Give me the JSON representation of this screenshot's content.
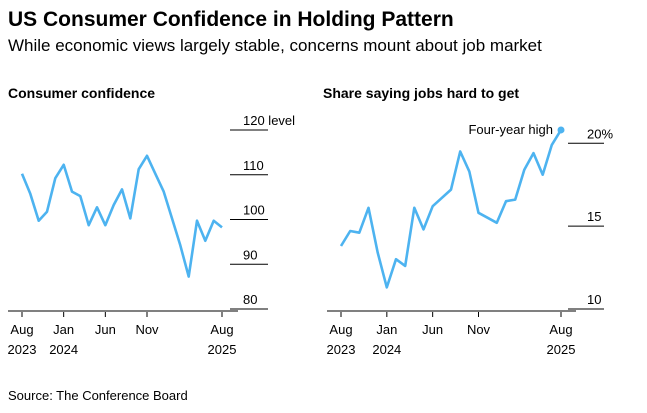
{
  "title": "US Consumer Confidence in Holding Pattern",
  "subtitle": "While economic views largely stable, concerns mount about job market",
  "source": "Source: The Conference Board",
  "colors": {
    "line": "#4db3f0",
    "axis": "#000000",
    "grid": "#000000"
  },
  "chart_data": [
    {
      "type": "line",
      "title": "Consumer confidence",
      "x": [
        "2023-08",
        "2023-09",
        "2023-10",
        "2023-11",
        "2023-12",
        "2024-01",
        "2024-02",
        "2024-03",
        "2024-04",
        "2024-05",
        "2024-06",
        "2024-07",
        "2024-08",
        "2024-09",
        "2024-10",
        "2024-11",
        "2024-12",
        "2025-01",
        "2025-02",
        "2025-03",
        "2025-04",
        "2025-05",
        "2025-06",
        "2025-07",
        "2025-08"
      ],
      "series": [
        {
          "values": [
            108,
            103.5,
            97.5,
            99.5,
            107,
            110,
            104,
            103,
            96.5,
            100.5,
            96.5,
            101,
            104.5,
            98,
            109,
            112,
            108,
            104,
            98,
            92,
            85,
            97.5,
            93,
            97.5,
            96
          ]
        }
      ],
      "ylim": [
        80,
        120
      ],
      "yticks": [
        {
          "value": 120,
          "label": "120 level"
        },
        {
          "value": 110,
          "label": "110"
        },
        {
          "value": 100,
          "label": "100"
        },
        {
          "value": 90,
          "label": "90"
        },
        {
          "value": 80,
          "label": "80"
        }
      ],
      "xticks": [
        {
          "x": "2023-08",
          "label": "Aug",
          "sublabel": "2023"
        },
        {
          "x": "2024-01",
          "label": "Jan",
          "sublabel": "2024"
        },
        {
          "x": "2024-06",
          "label": "Jun",
          "sublabel": ""
        },
        {
          "x": "2024-11",
          "label": "Nov",
          "sublabel": ""
        },
        {
          "x": "2025-08",
          "label": "Aug",
          "sublabel": "2025"
        }
      ]
    },
    {
      "type": "line",
      "title": "Share saying jobs hard to get",
      "x": [
        "2023-08",
        "2023-09",
        "2023-10",
        "2023-11",
        "2023-12",
        "2024-01",
        "2024-02",
        "2024-03",
        "2024-04",
        "2024-05",
        "2024-06",
        "2024-07",
        "2024-08",
        "2024-09",
        "2024-10",
        "2024-11",
        "2024-12",
        "2025-01",
        "2025-02",
        "2025-03",
        "2025-04",
        "2025-05",
        "2025-06",
        "2025-07",
        "2025-08"
      ],
      "series": [
        {
          "values": [
            13.2,
            14.1,
            14.0,
            15.5,
            12.8,
            10.7,
            12.4,
            12.0,
            15.5,
            14.2,
            15.6,
            16.1,
            16.6,
            18.9,
            17.7,
            15.2,
            14.9,
            14.6,
            15.9,
            16.0,
            17.8,
            18.8,
            17.5,
            19.3,
            20.2
          ]
        }
      ],
      "ylim": [
        10,
        20.8
      ],
      "yticks": [
        {
          "value": 20,
          "label": "20%"
        },
        {
          "value": 15,
          "label": "15"
        },
        {
          "value": 10,
          "label": "10"
        }
      ],
      "xticks": [
        {
          "x": "2023-08",
          "label": "Aug",
          "sublabel": "2023"
        },
        {
          "x": "2024-01",
          "label": "Jan",
          "sublabel": "2024"
        },
        {
          "x": "2024-06",
          "label": "Jun",
          "sublabel": ""
        },
        {
          "x": "2024-11",
          "label": "Nov",
          "sublabel": ""
        },
        {
          "x": "2025-08",
          "label": "Aug",
          "sublabel": "2025"
        }
      ],
      "annotations": [
        {
          "x": "2025-08",
          "value": 20.2,
          "text": "Four-year high"
        }
      ]
    }
  ]
}
